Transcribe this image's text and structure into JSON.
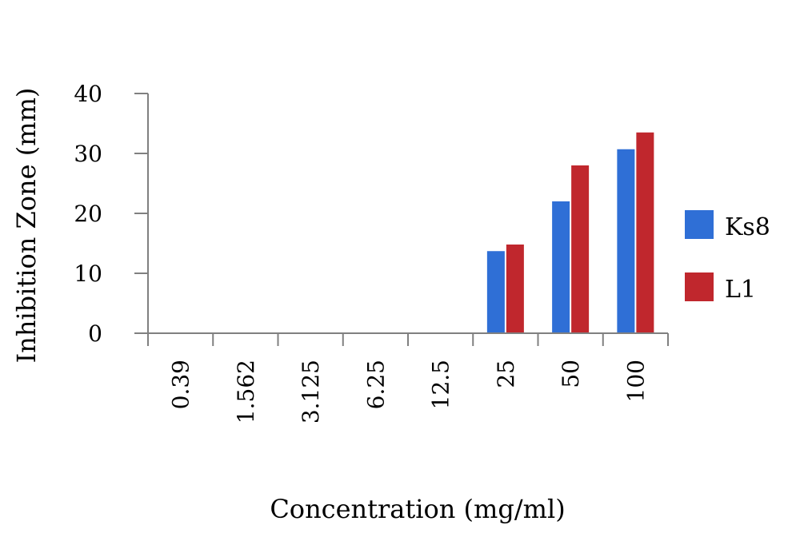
{
  "chart_data": {
    "type": "bar",
    "categories": [
      "0.39",
      "1.562",
      "3.125",
      "6.25",
      "12.5",
      "25",
      "50",
      "100"
    ],
    "series": [
      {
        "name": "Ks8",
        "values": [
          0,
          0,
          0,
          0,
          0,
          13.7,
          22.0,
          30.7
        ],
        "color": "#2F6FD6"
      },
      {
        "name": "L1",
        "values": [
          0,
          0,
          0,
          0,
          0,
          14.8,
          28.0,
          33.5
        ],
        "color": "#C0272D"
      }
    ],
    "title": "",
    "xlabel": "Concentration (mg/ml)",
    "ylabel": "Inhibition Zone (mm)",
    "ylim": [
      0,
      40
    ],
    "yticks": [
      "0",
      "10",
      "20",
      "30",
      "40"
    ],
    "grid": false,
    "legend_position": "right"
  }
}
